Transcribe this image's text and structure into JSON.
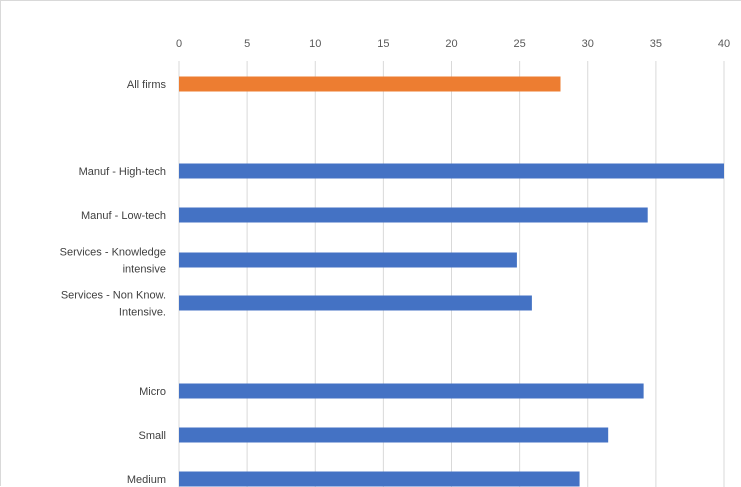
{
  "chart_data": {
    "type": "bar",
    "orientation": "horizontal",
    "categories": [
      [
        "All firms"
      ],
      [
        "Manuf - High-tech"
      ],
      [
        "Manuf - Low-tech"
      ],
      [
        "Services - Knowledge",
        "intensive"
      ],
      [
        "Services - Non Know.",
        "Intensive."
      ],
      [
        "Micro"
      ],
      [
        "Small"
      ],
      [
        "Medium"
      ]
    ],
    "values": [
      28,
      40,
      34.4,
      24.8,
      25.9,
      34.1,
      31.5,
      29.4
    ],
    "bar_colors": [
      "#ED7D31",
      "#4472C4",
      "#4472C4",
      "#4472C4",
      "#4472C4",
      "#4472C4",
      "#4472C4",
      "#4472C4"
    ],
    "xlim": [
      0,
      40
    ],
    "x_ticks": [
      0,
      5,
      10,
      15,
      20,
      25,
      30,
      35,
      40
    ],
    "x_axis_position": "top",
    "grid": true,
    "gridline_color": "#d9d9d9",
    "title": "",
    "xlabel": "",
    "ylabel": ""
  }
}
